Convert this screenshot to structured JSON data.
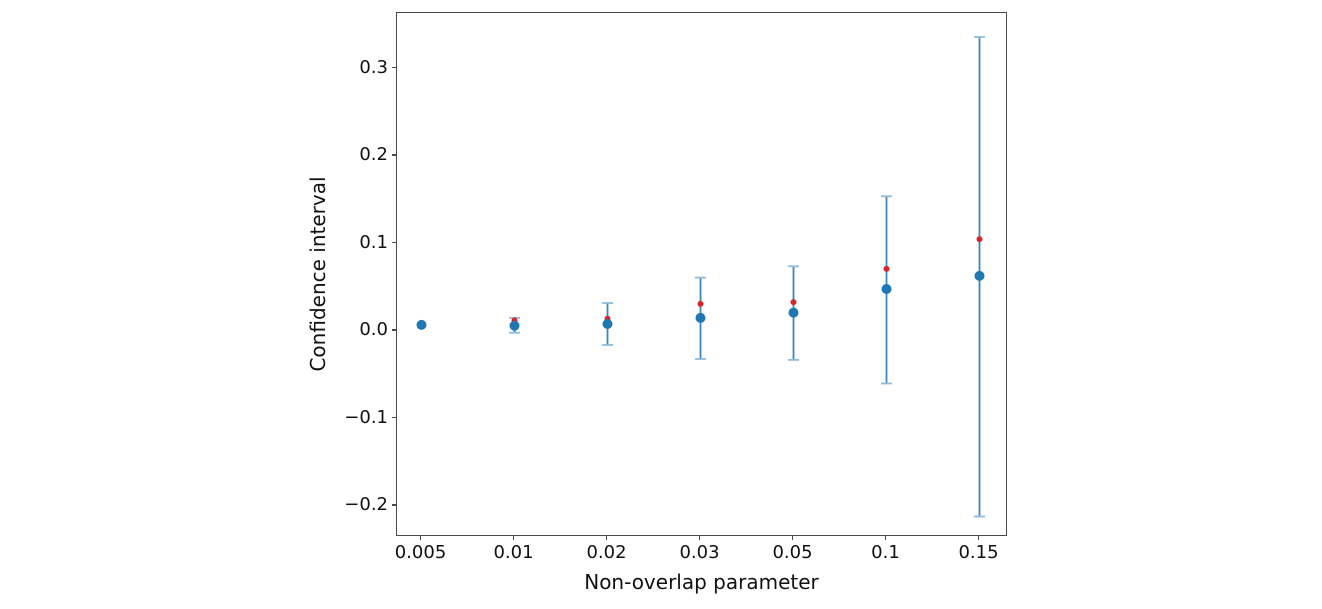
{
  "figure": {
    "background": "#ffffff",
    "spine_color": "#4a4a4a",
    "text_color": "#111111"
  },
  "chart_data": {
    "type": "scatter",
    "title": "",
    "xlabel": "Non-overlap parameter",
    "ylabel": "Confidence interval",
    "x_categories": [
      "0.005",
      "0.01",
      "0.02",
      "0.03",
      "0.05",
      "0.1",
      "0.15"
    ],
    "y_tick_labels": [
      "0.3",
      "0.2",
      "0.1",
      "0.0",
      "−0.1",
      "−0.2"
    ],
    "y_tick_values": [
      0.3,
      0.2,
      0.1,
      0.0,
      -0.1,
      -0.2
    ],
    "ylim": [
      -0.235,
      0.363
    ],
    "grid": false,
    "legend": "none",
    "series": [
      {
        "name": "estimate-with-confidence-interval",
        "marker": "circle",
        "marker_color": "#1f77b4",
        "marker_diameter_px": 10,
        "errorbar_color": "#3c86c0",
        "errorbar_cap_color": "#8fbcdc",
        "values": [
          0.007,
          0.006,
          0.008,
          0.015,
          0.021,
          0.048,
          0.063
        ],
        "err_high": [
          0.007,
          0.015,
          0.032,
          0.061,
          0.074,
          0.154,
          0.336
        ],
        "err_low": [
          0.007,
          -0.002,
          -0.016,
          -0.032,
          -0.033,
          -0.06,
          -0.212
        ]
      },
      {
        "name": "point-estimate",
        "marker": "circle",
        "marker_color": "#d62728",
        "marker_diameter_px": 6,
        "values": [
          0.007,
          0.012,
          0.014,
          0.031,
          0.033,
          0.071,
          0.105
        ]
      }
    ]
  }
}
